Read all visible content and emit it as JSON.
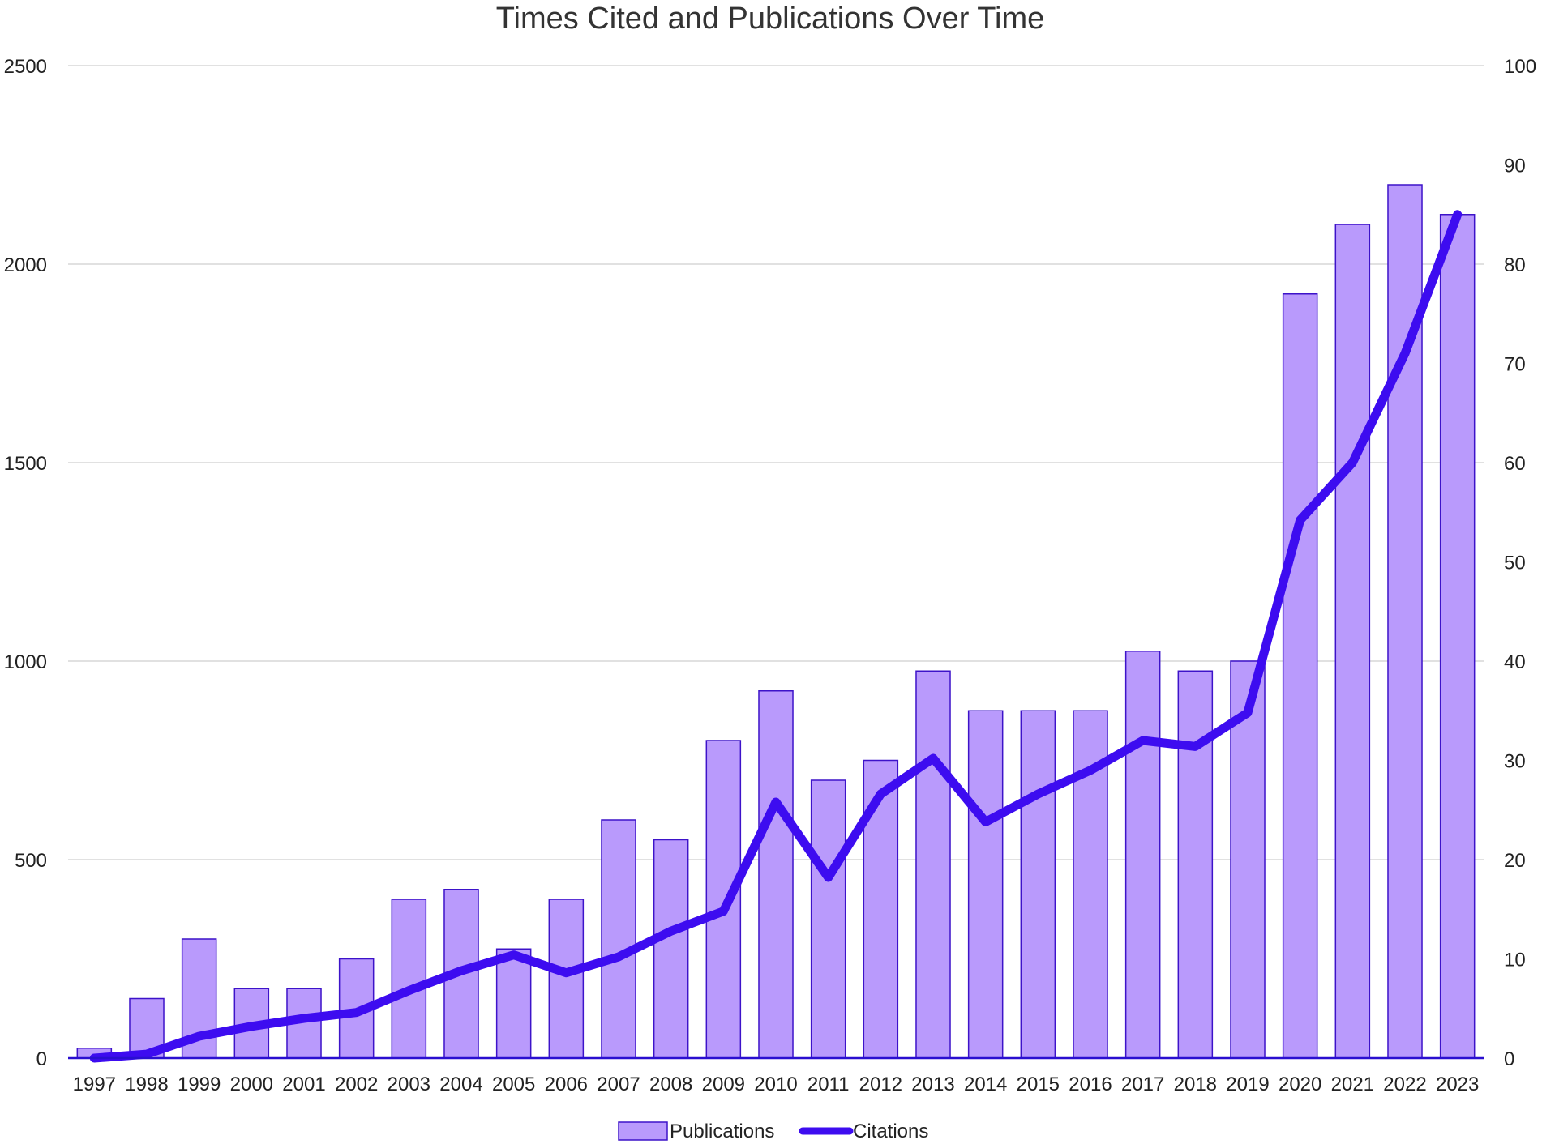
{
  "chart_data": {
    "type": "bar",
    "title": "Times Cited and Publications Over Time",
    "xlabel": "",
    "ylabel": "",
    "y2label": "",
    "categories": [
      "1997",
      "1998",
      "1999",
      "2000",
      "2001",
      "2002",
      "2003",
      "2004",
      "2005",
      "2006",
      "2007",
      "2008",
      "2009",
      "2010",
      "2011",
      "2012",
      "2013",
      "2014",
      "2015",
      "2016",
      "2017",
      "2018",
      "2019",
      "2020",
      "2021",
      "2022",
      "2023"
    ],
    "ylim": [
      0,
      2500
    ],
    "y2lim": [
      0,
      100
    ],
    "y_ticks": [
      "0",
      "500",
      "1000",
      "1500",
      "2000",
      "2500"
    ],
    "y2_ticks": [
      "0",
      "10",
      "20",
      "30",
      "40",
      "50",
      "60",
      "70",
      "80",
      "90",
      "100"
    ],
    "grid": true,
    "legend_position": "bottom",
    "series": [
      {
        "name": "Publications",
        "type": "bar",
        "axis": "right",
        "color": "#b99afc",
        "edge_color": "#3d13c9",
        "values": [
          1,
          6,
          12,
          7,
          7,
          10,
          16,
          17,
          11,
          16,
          24,
          22,
          32,
          37,
          28,
          30,
          39,
          35,
          35,
          35,
          41,
          39,
          40,
          77,
          84,
          88,
          85
        ]
      },
      {
        "name": "Citations",
        "type": "line",
        "axis": "left",
        "color": "#3d0cf0",
        "values": [
          0,
          10,
          55,
          80,
          100,
          115,
          170,
          220,
          260,
          215,
          255,
          320,
          370,
          645,
          455,
          665,
          755,
          595,
          665,
          725,
          800,
          785,
          870,
          1355,
          1500,
          1775,
          2125
        ]
      }
    ]
  }
}
